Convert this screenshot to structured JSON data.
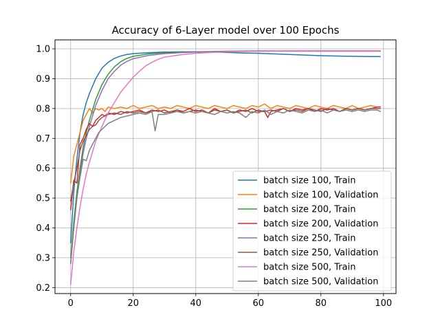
{
  "chart_data": {
    "type": "line",
    "title": "Accuracy of 6-Layer model over 100 Epochs",
    "xlabel": "",
    "ylabel": "",
    "xlim": [
      -5,
      104
    ],
    "ylim": [
      0.18,
      1.03
    ],
    "xticks": [
      0,
      20,
      40,
      60,
      80,
      100
    ],
    "yticks": [
      0.2,
      0.3,
      0.4,
      0.5,
      0.6,
      0.7,
      0.8,
      0.9,
      1.0
    ],
    "xtick_labels": [
      "0",
      "20",
      "40",
      "60",
      "80",
      "100"
    ],
    "ytick_labels": [
      "0.2",
      "0.3",
      "0.4",
      "0.5",
      "0.6",
      "0.7",
      "0.8",
      "0.9",
      "1.0"
    ],
    "grid": true,
    "legend_position": "lower-right",
    "series": [
      {
        "name": "batch size 100, Train",
        "color": "#1f77b4",
        "x": [
          0,
          1,
          2,
          3,
          4,
          5,
          6,
          8,
          10,
          12,
          14,
          16,
          18,
          20,
          25,
          30,
          35,
          40,
          45,
          50,
          55,
          60,
          65,
          70,
          75,
          80,
          85,
          90,
          95,
          99
        ],
        "y": [
          0.35,
          0.52,
          0.63,
          0.72,
          0.78,
          0.82,
          0.85,
          0.9,
          0.935,
          0.955,
          0.968,
          0.976,
          0.981,
          0.984,
          0.987,
          0.989,
          0.99,
          0.99,
          0.989,
          0.988,
          0.986,
          0.985,
          0.983,
          0.981,
          0.979,
          0.977,
          0.976,
          0.975,
          0.974,
          0.974
        ]
      },
      {
        "name": "batch size 100, Validation",
        "color": "#ff7f0e",
        "x": [
          0,
          1,
          2,
          3,
          4,
          5,
          6,
          7,
          8,
          9,
          10,
          11,
          12,
          14,
          16,
          18,
          20,
          22,
          24,
          26,
          28,
          30,
          32,
          34,
          36,
          38,
          40,
          42,
          44,
          46,
          48,
          50,
          52,
          54,
          56,
          58,
          60,
          62,
          64,
          66,
          68,
          70,
          72,
          74,
          76,
          78,
          80,
          82,
          84,
          86,
          88,
          90,
          92,
          94,
          96,
          98,
          99
        ],
        "y": [
          0.55,
          0.64,
          0.68,
          0.72,
          0.76,
          0.78,
          0.8,
          0.785,
          0.8,
          0.795,
          0.8,
          0.79,
          0.805,
          0.8,
          0.805,
          0.8,
          0.81,
          0.8,
          0.805,
          0.81,
          0.8,
          0.805,
          0.8,
          0.81,
          0.805,
          0.8,
          0.81,
          0.805,
          0.8,
          0.81,
          0.805,
          0.8,
          0.81,
          0.805,
          0.8,
          0.81,
          0.805,
          0.815,
          0.8,
          0.81,
          0.805,
          0.8,
          0.81,
          0.805,
          0.8,
          0.81,
          0.805,
          0.8,
          0.81,
          0.805,
          0.8,
          0.81,
          0.8,
          0.805,
          0.81,
          0.805,
          0.805
        ]
      },
      {
        "name": "batch size 200, Train",
        "color": "#2ca02c",
        "x": [
          0,
          1,
          2,
          3,
          4,
          5,
          6,
          8,
          10,
          12,
          14,
          16,
          18,
          20,
          25,
          30,
          35,
          40,
          50,
          60,
          70,
          80,
          90,
          99
        ],
        "y": [
          0.3,
          0.42,
          0.52,
          0.6,
          0.67,
          0.72,
          0.76,
          0.83,
          0.88,
          0.915,
          0.94,
          0.957,
          0.968,
          0.975,
          0.983,
          0.987,
          0.989,
          0.99,
          0.992,
          0.993,
          0.993,
          0.993,
          0.993,
          0.993
        ]
      },
      {
        "name": "batch size 200, Validation",
        "color": "#d62728",
        "x": [
          0,
          1,
          2,
          3,
          4,
          5,
          6,
          7,
          8,
          9,
          10,
          11,
          12,
          14,
          16,
          18,
          20,
          22,
          24,
          26,
          28,
          30,
          32,
          34,
          36,
          38,
          40,
          42,
          44,
          46,
          48,
          50,
          52,
          54,
          56,
          58,
          60,
          62,
          63,
          64,
          66,
          68,
          70,
          72,
          74,
          76,
          78,
          80,
          82,
          84,
          86,
          88,
          90,
          92,
          94,
          96,
          98,
          99
        ],
        "y": [
          0.46,
          0.56,
          0.55,
          0.68,
          0.7,
          0.73,
          0.75,
          0.74,
          0.76,
          0.77,
          0.78,
          0.775,
          0.785,
          0.78,
          0.79,
          0.785,
          0.79,
          0.795,
          0.785,
          0.795,
          0.79,
          0.795,
          0.785,
          0.795,
          0.79,
          0.8,
          0.79,
          0.795,
          0.785,
          0.8,
          0.79,
          0.795,
          0.785,
          0.795,
          0.79,
          0.8,
          0.79,
          0.79,
          0.77,
          0.79,
          0.795,
          0.8,
          0.79,
          0.8,
          0.795,
          0.8,
          0.79,
          0.8,
          0.795,
          0.8,
          0.79,
          0.8,
          0.795,
          0.8,
          0.795,
          0.8,
          0.805,
          0.805
        ]
      },
      {
        "name": "batch size 250, Train",
        "color": "#9467bd",
        "x": [
          0,
          1,
          2,
          3,
          4,
          5,
          6,
          8,
          10,
          12,
          14,
          16,
          18,
          20,
          25,
          30,
          35,
          40,
          50,
          60,
          70,
          80,
          90,
          99
        ],
        "y": [
          0.28,
          0.4,
          0.5,
          0.58,
          0.65,
          0.7,
          0.74,
          0.81,
          0.86,
          0.9,
          0.925,
          0.945,
          0.958,
          0.967,
          0.978,
          0.984,
          0.987,
          0.989,
          0.991,
          0.992,
          0.992,
          0.992,
          0.992,
          0.992
        ]
      },
      {
        "name": "batch size 250, Validation",
        "color": "#8c564b",
        "x": [
          0,
          1,
          2,
          3,
          4,
          5,
          6,
          7,
          8,
          9,
          10,
          11,
          12,
          14,
          16,
          18,
          20,
          22,
          24,
          26,
          28,
          30,
          32,
          34,
          36,
          38,
          40,
          42,
          44,
          46,
          48,
          50,
          52,
          54,
          56,
          58,
          60,
          62,
          64,
          66,
          68,
          70,
          72,
          74,
          76,
          78,
          80,
          82,
          84,
          86,
          88,
          90,
          92,
          94,
          96,
          98,
          99
        ],
        "y": [
          0.49,
          0.55,
          0.6,
          0.66,
          0.69,
          0.71,
          0.73,
          0.74,
          0.745,
          0.76,
          0.77,
          0.775,
          0.78,
          0.785,
          0.78,
          0.79,
          0.785,
          0.79,
          0.785,
          0.79,
          0.795,
          0.785,
          0.79,
          0.795,
          0.785,
          0.79,
          0.795,
          0.79,
          0.785,
          0.795,
          0.79,
          0.795,
          0.785,
          0.79,
          0.795,
          0.785,
          0.795,
          0.79,
          0.795,
          0.79,
          0.8,
          0.79,
          0.795,
          0.79,
          0.8,
          0.795,
          0.79,
          0.8,
          0.795,
          0.79,
          0.8,
          0.795,
          0.8,
          0.795,
          0.8,
          0.8,
          0.8
        ]
      },
      {
        "name": "batch size 500, Train",
        "color": "#e377c2",
        "x": [
          0,
          1,
          2,
          3,
          4,
          5,
          6,
          8,
          10,
          12,
          14,
          16,
          18,
          20,
          22,
          24,
          26,
          28,
          30,
          35,
          40,
          45,
          50,
          60,
          70,
          80,
          90,
          99
        ],
        "y": [
          0.21,
          0.32,
          0.4,
          0.47,
          0.53,
          0.58,
          0.62,
          0.69,
          0.74,
          0.785,
          0.82,
          0.855,
          0.88,
          0.905,
          0.925,
          0.943,
          0.955,
          0.965,
          0.972,
          0.98,
          0.985,
          0.988,
          0.99,
          0.992,
          0.993,
          0.993,
          0.993,
          0.993
        ]
      },
      {
        "name": "batch size 500, Validation",
        "color": "#7f7f7f",
        "x": [
          0,
          1,
          2,
          3,
          4,
          5,
          6,
          7,
          8,
          9,
          10,
          11,
          12,
          14,
          16,
          18,
          20,
          22,
          24,
          26,
          27,
          28,
          30,
          32,
          34,
          36,
          38,
          40,
          42,
          44,
          46,
          48,
          50,
          52,
          54,
          56,
          58,
          60,
          62,
          64,
          66,
          68,
          70,
          72,
          74,
          76,
          78,
          80,
          82,
          84,
          86,
          88,
          90,
          92,
          94,
          96,
          98,
          99
        ],
        "y": [
          0.28,
          0.4,
          0.5,
          0.57,
          0.63,
          0.625,
          0.66,
          0.68,
          0.7,
          0.72,
          0.73,
          0.74,
          0.75,
          0.76,
          0.77,
          0.775,
          0.78,
          0.785,
          0.78,
          0.79,
          0.725,
          0.78,
          0.78,
          0.785,
          0.79,
          0.785,
          0.79,
          0.785,
          0.79,
          0.785,
          0.78,
          0.79,
          0.785,
          0.79,
          0.785,
          0.77,
          0.79,
          0.785,
          0.795,
          0.78,
          0.79,
          0.785,
          0.795,
          0.79,
          0.785,
          0.795,
          0.79,
          0.795,
          0.785,
          0.795,
          0.79,
          0.795,
          0.79,
          0.795,
          0.79,
          0.795,
          0.795,
          0.79
        ]
      }
    ]
  }
}
